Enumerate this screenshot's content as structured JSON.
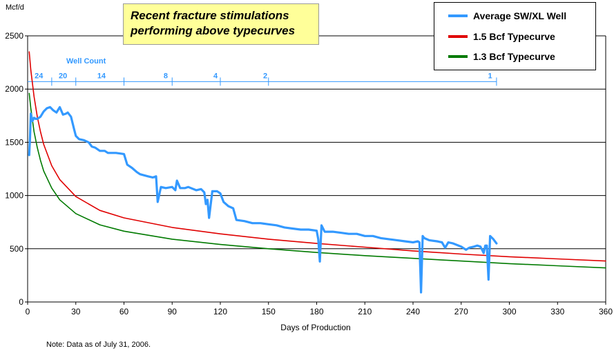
{
  "callout": {
    "line1": "Recent fracture stimulations",
    "line2": "performing above typecurves"
  },
  "note": "Note:  Data as of July 31, 2006.",
  "well_count": {
    "title": "Well Count",
    "labels": [
      {
        "x": 7,
        "text": "24"
      },
      {
        "x": 22,
        "text": "20"
      },
      {
        "x": 46,
        "text": "14"
      },
      {
        "x": 86,
        "text": "8"
      },
      {
        "x": 117,
        "text": "4"
      },
      {
        "x": 148,
        "text": "2"
      },
      {
        "x": 288,
        "text": "1"
      }
    ],
    "dividers": [
      15,
      30,
      60,
      90,
      120,
      150,
      292
    ]
  },
  "colors": {
    "average": "#3399ff",
    "tc15": "#e00000",
    "tc13": "#007a00",
    "wellcount": "#3399ff"
  },
  "chart_data": {
    "type": "line",
    "title": "",
    "xlabel": "Days of Production",
    "ylabel": "Mcf/d",
    "xlim": [
      0,
      360
    ],
    "ylim": [
      0,
      2500
    ],
    "xticks": [
      0,
      30,
      60,
      90,
      120,
      150,
      180,
      210,
      240,
      270,
      300,
      330,
      360
    ],
    "yticks": [
      0,
      500,
      1000,
      1500,
      2000,
      2500
    ],
    "grid": "horizontal",
    "legend_position": "top-right",
    "series": [
      {
        "name": "Average SW/XL Well",
        "color": "#3399ff",
        "x": [
          1,
          1.5,
          2,
          3,
          4,
          5,
          6,
          8,
          10,
          12,
          14,
          16,
          18,
          20,
          22,
          24,
          25,
          27,
          29,
          30,
          32,
          35,
          38,
          40,
          42,
          45,
          48,
          50,
          55,
          60,
          62,
          65,
          68,
          70,
          75,
          78,
          80,
          81,
          83,
          86,
          90,
          92,
          93,
          95,
          98,
          100,
          105,
          108,
          110,
          111,
          112,
          113,
          115,
          118,
          120,
          122,
          125,
          128,
          130,
          135,
          140,
          145,
          150,
          155,
          160,
          165,
          170,
          175,
          180,
          181,
          182,
          183,
          185,
          190,
          195,
          200,
          205,
          210,
          215,
          220,
          225,
          230,
          235,
          240,
          243,
          244,
          245,
          246,
          247,
          250,
          255,
          258,
          260,
          262,
          265,
          270,
          273,
          275,
          278,
          280,
          282,
          283,
          284,
          285,
          286,
          287,
          288,
          290,
          292
        ],
        "y": [
          1380,
          1550,
          1770,
          1700,
          1730,
          1720,
          1720,
          1740,
          1790,
          1820,
          1830,
          1800,
          1780,
          1830,
          1760,
          1770,
          1780,
          1740,
          1620,
          1560,
          1530,
          1520,
          1500,
          1460,
          1450,
          1420,
          1420,
          1400,
          1400,
          1390,
          1290,
          1260,
          1220,
          1200,
          1180,
          1170,
          1180,
          940,
          1080,
          1070,
          1080,
          1050,
          1140,
          1070,
          1070,
          1080,
          1050,
          1060,
          1030,
          920,
          960,
          790,
          1040,
          1040,
          1020,
          940,
          900,
          880,
          770,
          760,
          740,
          740,
          730,
          720,
          700,
          690,
          680,
          680,
          670,
          590,
          380,
          720,
          660,
          660,
          650,
          640,
          640,
          620,
          620,
          600,
          590,
          580,
          570,
          560,
          570,
          560,
          90,
          620,
          600,
          580,
          570,
          560,
          510,
          560,
          550,
          520,
          490,
          510,
          520,
          530,
          520,
          490,
          460,
          530,
          530,
          210,
          620,
          590,
          550
        ]
      },
      {
        "name": "1.5 Bcf Typecurve",
        "color": "#e00000",
        "x": [
          1,
          2,
          4,
          6,
          8,
          10,
          15,
          20,
          30,
          45,
          60,
          90,
          120,
          150,
          180,
          210,
          240,
          270,
          300,
          330,
          360
        ],
        "y": [
          2350,
          2180,
          1930,
          1740,
          1600,
          1480,
          1280,
          1150,
          990,
          860,
          790,
          700,
          640,
          590,
          550,
          515,
          480,
          450,
          425,
          405,
          385
        ]
      },
      {
        "name": "1.3 Bcf Typecurve",
        "color": "#007a00",
        "x": [
          1,
          2,
          4,
          6,
          8,
          10,
          15,
          20,
          30,
          45,
          60,
          90,
          120,
          150,
          180,
          210,
          240,
          270,
          300,
          330,
          360
        ],
        "y": [
          1960,
          1820,
          1600,
          1450,
          1330,
          1230,
          1070,
          960,
          830,
          725,
          665,
          590,
          540,
          500,
          465,
          435,
          410,
          385,
          360,
          340,
          320
        ]
      }
    ]
  }
}
